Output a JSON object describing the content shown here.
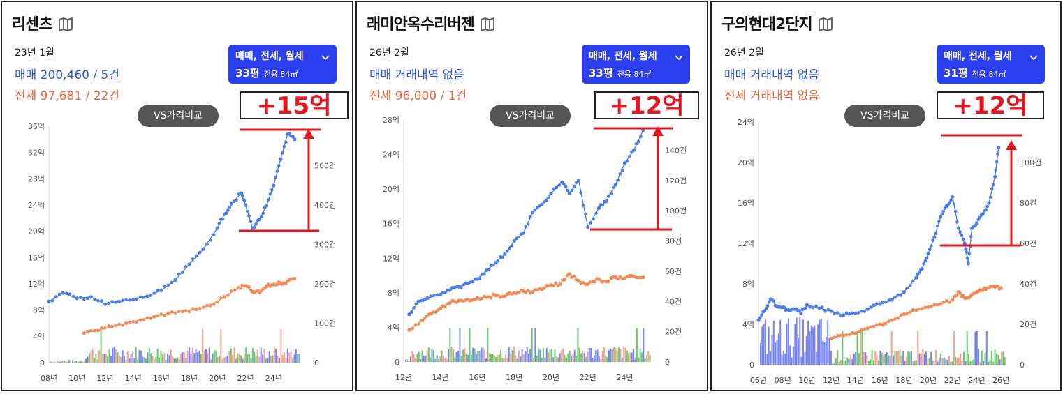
{
  "colors": {
    "sale": "#4a7cf0",
    "jeonse": "#f58a55",
    "annotation": "#e8141e",
    "filter_bg": "#2b3fef",
    "vol_blue": "#4a5cf0",
    "vol_red": "#f0836e",
    "vol_green": "#39b53a"
  },
  "icons": {
    "title_icon": "map-icon",
    "filter_icon": "chevron-down-icon"
  },
  "panels": [
    {
      "title": "리센츠",
      "date": "23년 1월",
      "sale_text": "매매 200,460 / 5건",
      "jeonse_text": "전세 97,681 / 22건",
      "filter": {
        "type": "매매, 전세, 월세",
        "pyeong": "33평",
        "area": "전용 84㎡"
      },
      "vs_button": "VS가격비교",
      "annotation": "+15억",
      "chart_data": {
        "type": "line",
        "y_ticks": [
          "0",
          "4억",
          "8억",
          "12억",
          "16억",
          "20억",
          "24억",
          "28억",
          "32억",
          "36억"
        ],
        "y2_ticks": [
          "0",
          "100건",
          "200건",
          "300건",
          "400건",
          "500건"
        ],
        "x_ticks": [
          "08년",
          "10년",
          "12년",
          "14년",
          "16년",
          "18년",
          "20년",
          "22년",
          "24년"
        ],
        "ylim": [
          0,
          36
        ],
        "xlim": [
          2008,
          2026
        ],
        "volume_ylim": [
          0,
          600
        ],
        "series": [
          {
            "key": "sale",
            "x": [
              2008.0,
              2009.0,
              2010.0,
              2011.0,
              2012.0,
              2013.0,
              2014.0,
              2015.0,
              2016.0,
              2017.0,
              2018.0,
              2019.0,
              2020.0,
              2020.5,
              2021.0,
              2021.7,
              2022.0,
              2022.5,
              2023.0,
              2023.5,
              2024.0,
              2024.5,
              2025.0,
              2025.5
            ],
            "y": [
              9.3,
              10.6,
              9.8,
              10.0,
              8.9,
              9.3,
              9.6,
              10.1,
              11.0,
              12.6,
              15.0,
              17.3,
              20.5,
              22.6,
              24.2,
              25.8,
              24.0,
              20.5,
              21.8,
              23.9,
              27.0,
              31.0,
              34.8,
              34.0
            ]
          },
          {
            "key": "jeonse",
            "x": [
              2010.5,
              2011.5,
              2012.5,
              2013.5,
              2014.5,
              2015.5,
              2016.5,
              2017.5,
              2018.5,
              2019.5,
              2020.5,
              2021.5,
              2022.0,
              2022.5,
              2023.0,
              2023.5,
              2024.0,
              2024.5,
              2025.0,
              2025.5
            ],
            "y": [
              4.5,
              4.9,
              5.5,
              6.0,
              6.5,
              7.0,
              7.5,
              7.8,
              8.1,
              8.7,
              10.0,
              11.4,
              11.7,
              10.8,
              10.7,
              11.6,
              11.9,
              12.1,
              12.4,
              12.8
            ]
          }
        ]
      }
    },
    {
      "title": "래미안옥수리버젠",
      "date": "26년 2월",
      "sale_text": "매매 거래내역 없음",
      "jeonse_text": "전세 96,000 / 1건",
      "filter": {
        "type": "매매, 전세, 월세",
        "pyeong": "33평",
        "area": "전용 84㎡"
      },
      "vs_button": "VS가격비교",
      "annotation": "+12억",
      "chart_data": {
        "type": "line",
        "y_ticks": [
          "0",
          "4억",
          "8억",
          "12억",
          "16억",
          "20억",
          "24억",
          "28억"
        ],
        "y2_ticks": [
          "0",
          "20건",
          "40건",
          "60건",
          "80건",
          "100건",
          "120건",
          "140건"
        ],
        "x_ticks": [
          "12년",
          "14년",
          "16년",
          "18년",
          "20년",
          "22년",
          "24년"
        ],
        "ylim": [
          0,
          28
        ],
        "xlim": [
          2012,
          2025.5
        ],
        "volume_ylim": [
          0,
          160
        ],
        "series": [
          {
            "key": "sale",
            "x": [
              2012.3,
              2012.8,
              2013.3,
              2014.0,
              2014.5,
              2015.0,
              2015.5,
              2016.0,
              2016.5,
              2017.0,
              2017.5,
              2018.0,
              2018.5,
              2019.0,
              2019.5,
              2020.0,
              2020.6,
              2021.0,
              2021.5,
              2022.0,
              2022.6,
              2023.0,
              2023.5,
              2024.0,
              2024.5,
              2025.0
            ],
            "y": [
              5.5,
              7.0,
              7.4,
              7.8,
              8.3,
              8.7,
              9.1,
              9.6,
              10.6,
              11.5,
              12.5,
              14.0,
              14.9,
              17.3,
              18.2,
              19.5,
              20.8,
              19.5,
              21.0,
              15.6,
              17.8,
              18.6,
              20.5,
              23.0,
              24.5,
              26.8
            ]
          },
          {
            "key": "jeonse",
            "x": [
              2012.3,
              2013.0,
              2013.5,
              2014.0,
              2014.5,
              2015.0,
              2015.5,
              2016.0,
              2016.5,
              2017.0,
              2017.5,
              2018.0,
              2018.5,
              2019.0,
              2019.5,
              2020.0,
              2020.5,
              2021.0,
              2021.5,
              2022.0,
              2022.5,
              2023.0,
              2023.5,
              2024.0,
              2024.5,
              2025.0
            ],
            "y": [
              3.7,
              4.8,
              5.6,
              6.2,
              6.8,
              7.1,
              7.2,
              7.4,
              7.5,
              7.7,
              7.6,
              8.0,
              8.2,
              8.1,
              8.4,
              8.9,
              9.0,
              10.2,
              9.4,
              9.0,
              9.6,
              9.3,
              9.8,
              9.7,
              9.9,
              9.8
            ]
          }
        ]
      }
    },
    {
      "title": "구의현대2단지",
      "date": "26년 2월",
      "sale_text": "매매 거래내역 없음",
      "jeonse_text": "전세 거래내역 없음",
      "filter": {
        "type": "매매, 전세, 월세",
        "pyeong": "31평",
        "area": "전용 84㎡"
      },
      "vs_button": "VS가격비교",
      "annotation": "+12억",
      "chart_data": {
        "type": "line",
        "y_ticks": [
          "0",
          "4억",
          "8억",
          "12억",
          "16억",
          "20억",
          "24억"
        ],
        "y2_ticks": [
          "0",
          "20건",
          "40건",
          "60건",
          "80건",
          "100건"
        ],
        "x_ticks": [
          "06년",
          "08년",
          "10년",
          "12년",
          "14년",
          "16년",
          "18년",
          "20년",
          "22년",
          "24년",
          "26년"
        ],
        "ylim": [
          0,
          24
        ],
        "xlim": [
          2006,
          2026.5
        ],
        "volume_ylim": [
          0,
          120
        ],
        "series": [
          {
            "key": "sale",
            "x": [
              2006.0,
              2006.5,
              2007.0,
              2007.5,
              2008.0,
              2008.5,
              2009.0,
              2009.5,
              2010.0,
              2011.0,
              2012.0,
              2013.0,
              2014.0,
              2015.0,
              2016.0,
              2017.0,
              2018.0,
              2019.0,
              2019.5,
              2020.0,
              2020.5,
              2021.0,
              2021.5,
              2022.0,
              2022.5,
              2023.0,
              2023.3,
              2023.6,
              2024.0,
              2024.5,
              2025.0,
              2025.5,
              2025.8
            ],
            "y": [
              4.4,
              5.3,
              6.5,
              5.8,
              5.7,
              5.4,
              5.5,
              5.1,
              5.9,
              5.6,
              5.3,
              4.9,
              5.1,
              5.5,
              6.0,
              6.4,
              7.2,
              8.6,
              9.5,
              11.0,
              12.6,
              14.6,
              15.7,
              16.6,
              13.5,
              12.0,
              10.0,
              13.5,
              14.0,
              14.9,
              16.0,
              18.6,
              21.5
            ]
          },
          {
            "key": "jeonse",
            "x": [
              2012.0,
              2013.0,
              2014.0,
              2015.0,
              2016.0,
              2017.0,
              2018.0,
              2019.0,
              2020.0,
              2021.0,
              2022.0,
              2022.5,
              2023.0,
              2023.5,
              2024.0,
              2024.5,
              2025.0,
              2025.5,
              2026.0
            ],
            "y": [
              2.6,
              2.9,
              3.1,
              3.6,
              4.0,
              4.4,
              5.0,
              5.4,
              5.7,
              6.0,
              6.4,
              7.2,
              6.6,
              6.8,
              7.2,
              7.4,
              7.6,
              7.7,
              7.6
            ]
          }
        ]
      }
    }
  ]
}
